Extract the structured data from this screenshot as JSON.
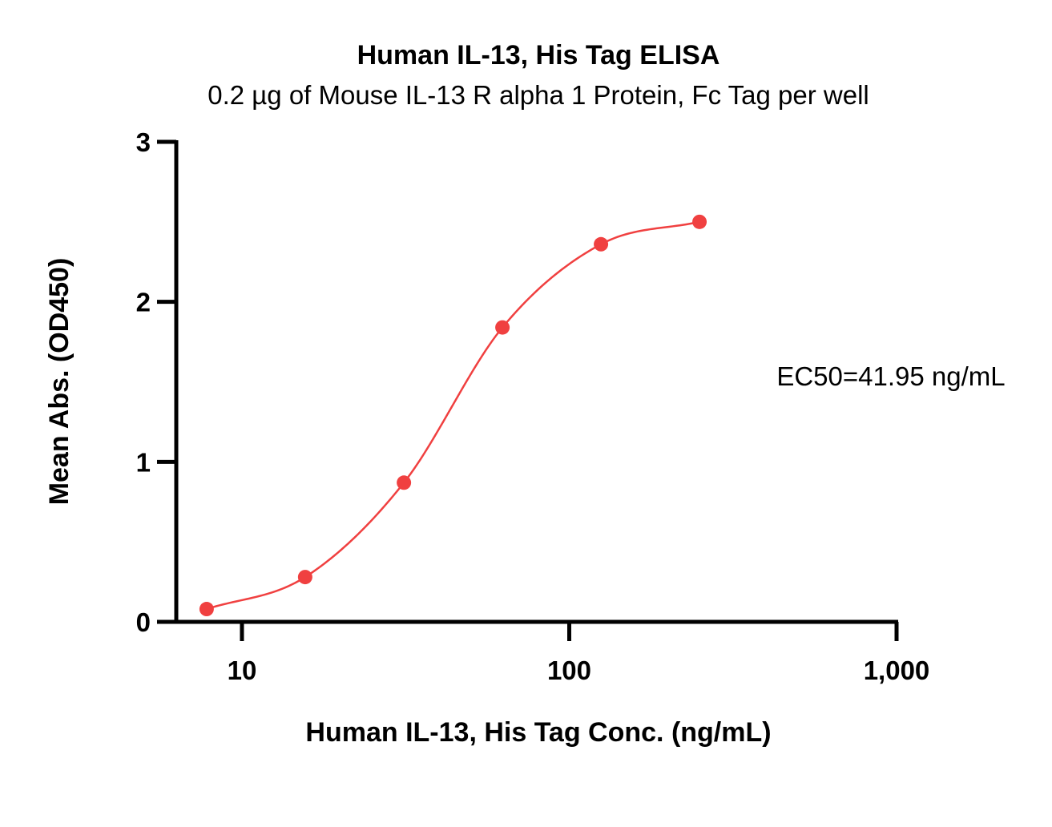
{
  "chart_data": {
    "type": "scatter",
    "title": "Human IL-13, His Tag ELISA",
    "subtitle": "0.2 µg of Mouse IL-13 R alpha 1 Protein, Fc Tag per well",
    "xlabel": "Human IL-13, His Tag Conc. (ng/mL)",
    "ylabel": "Mean Abs. (OD450)",
    "x_scale": "log",
    "xlim": [
      6.3,
      1000
    ],
    "ylim": [
      0,
      3
    ],
    "x_ticks": [
      10,
      100,
      1000
    ],
    "x_tick_labels": [
      "10",
      "100",
      "1,000"
    ],
    "y_ticks": [
      0,
      1,
      2,
      3
    ],
    "y_tick_labels": [
      "0",
      "1",
      "2",
      "3"
    ],
    "grid": false,
    "legend": "none",
    "color": "#f04040",
    "annotation": "EC50=41.95 ng/mL",
    "series": [
      {
        "x": [
          7.8,
          15.6,
          31.25,
          62.5,
          125,
          250
        ],
        "y": [
          0.08,
          0.28,
          0.87,
          1.84,
          2.36,
          2.5
        ]
      }
    ]
  }
}
